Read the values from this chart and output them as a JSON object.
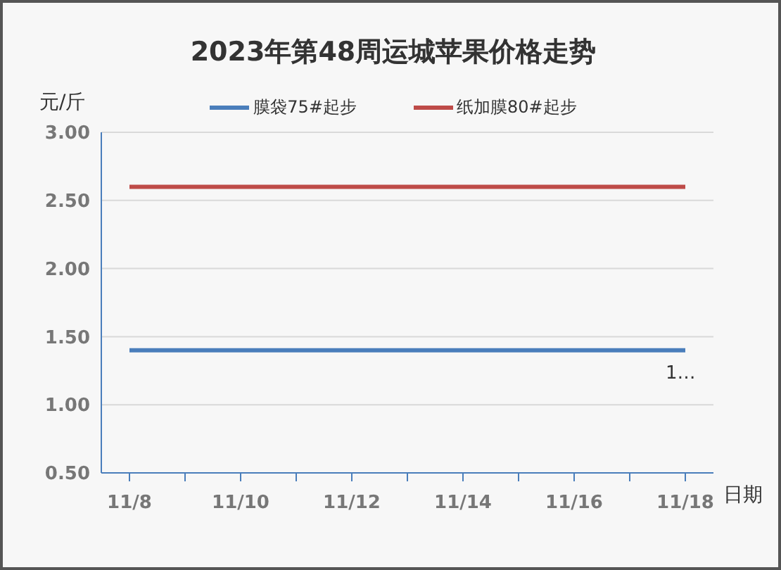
{
  "chart_data": {
    "type": "line",
    "title": "2023年第48周运城苹果价格走势",
    "xlabel": "日期",
    "ylabel": "元/斤",
    "categories": [
      "11/8",
      null,
      "11/10",
      null,
      "11/12",
      null,
      "11/14",
      null,
      "11/16",
      null,
      "11/18"
    ],
    "series": [
      {
        "name": "膜袋75#起步",
        "color": "#4a7ebb",
        "values": [
          1.4,
          1.4,
          1.4,
          1.4,
          1.4,
          1.4,
          1.4,
          1.4,
          1.4,
          1.4,
          1.4
        ],
        "value_labels": [
          null,
          null,
          null,
          null,
          null,
          null,
          null,
          null,
          null,
          null,
          "1…"
        ]
      },
      {
        "name": "纸加膜80#起步",
        "color": "#be4b48",
        "values": [
          2.6,
          2.6,
          2.6,
          2.6,
          2.6,
          2.6,
          2.6,
          2.6,
          2.6,
          2.6,
          2.6
        ]
      }
    ],
    "ylim": [
      0.5,
      3.0
    ],
    "yticks": [
      {
        "value": 0.5,
        "label": "0.50"
      },
      {
        "value": 1.0,
        "label": "1.00"
      },
      {
        "value": 1.5,
        "label": "1.50"
      },
      {
        "value": 2.0,
        "label": "2.00"
      },
      {
        "value": 2.5,
        "label": "2.50"
      },
      {
        "value": 3.0,
        "label": "3.00"
      }
    ],
    "grid": "y",
    "legend": "top",
    "marker": "none",
    "line_style": "solid"
  }
}
